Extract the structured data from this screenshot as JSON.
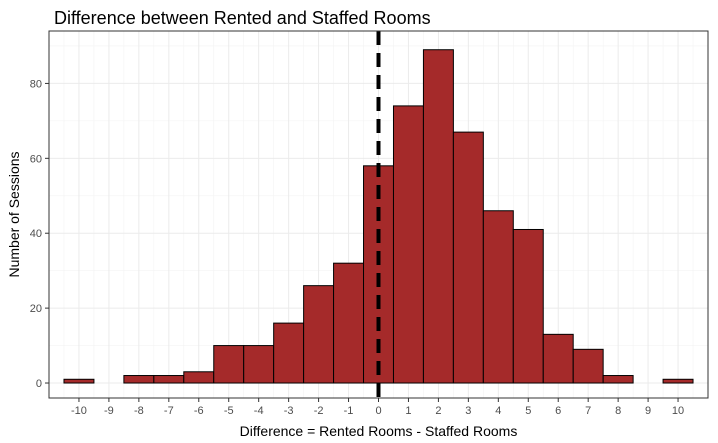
{
  "chart_data": {
    "type": "bar",
    "title": "Difference between Rented and Staffed Rooms",
    "xlabel": "Difference = Rented Rooms - Staffed Rooms",
    "ylabel": "Number of Sessions",
    "categories": [
      -10,
      -9,
      -8,
      -7,
      -6,
      -5,
      -4,
      -3,
      -2,
      -1,
      0,
      1,
      2,
      3,
      4,
      5,
      6,
      7,
      8,
      9,
      10
    ],
    "values": [
      1,
      0,
      2,
      2,
      3,
      10,
      10,
      16,
      26,
      32,
      58,
      74,
      89,
      67,
      46,
      41,
      13,
      9,
      2,
      0,
      1
    ],
    "xlim": [
      -11,
      11
    ],
    "ylim": [
      -4,
      94
    ],
    "x_ticks": [
      -10,
      -9,
      -8,
      -7,
      -6,
      -5,
      -4,
      -3,
      -2,
      -1,
      0,
      1,
      2,
      3,
      4,
      5,
      6,
      7,
      8,
      9,
      10
    ],
    "y_ticks": [
      0,
      20,
      40,
      60,
      80
    ],
    "vline_x": 0,
    "bar_color": "#a52a2a",
    "grid": true
  }
}
